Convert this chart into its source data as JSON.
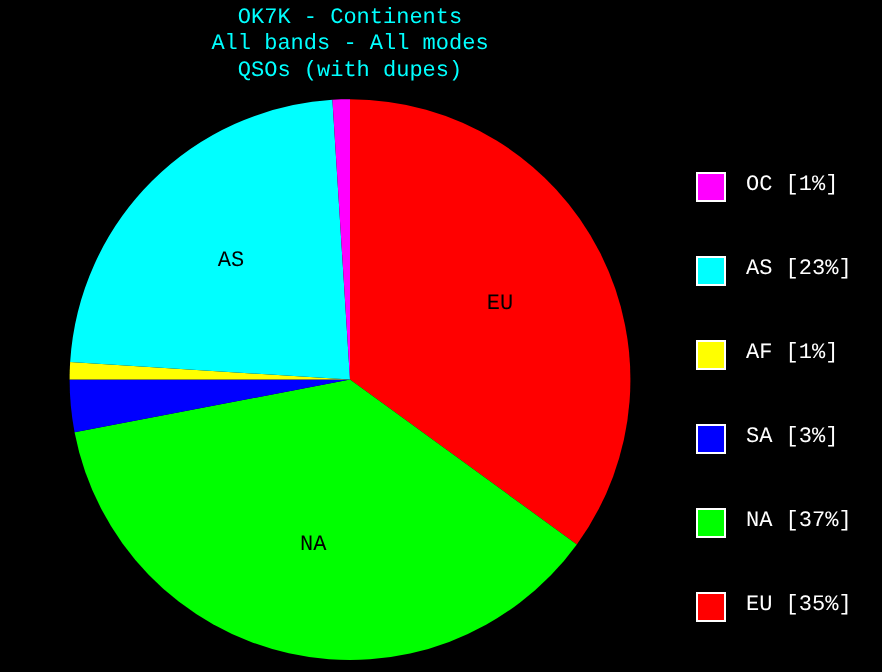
{
  "chart_data": {
    "type": "pie",
    "title": "OK7K - Continents",
    "subtitle": "All bands - All modes",
    "annotations": [
      "QSOs (with dupes)"
    ],
    "categories": [
      "OC",
      "AS",
      "AF",
      "SA",
      "NA",
      "EU"
    ],
    "values": [
      1,
      23,
      1,
      3,
      37,
      35
    ],
    "value_labels": [
      "[1%]",
      "[23%]",
      "[1%]",
      "[3%]",
      "[37%]",
      "[35%]"
    ],
    "colors": [
      "#ff00ff",
      "#00ffff",
      "#ffff00",
      "#0000ff",
      "#00ff00",
      "#ff0000"
    ],
    "legend": "right"
  }
}
